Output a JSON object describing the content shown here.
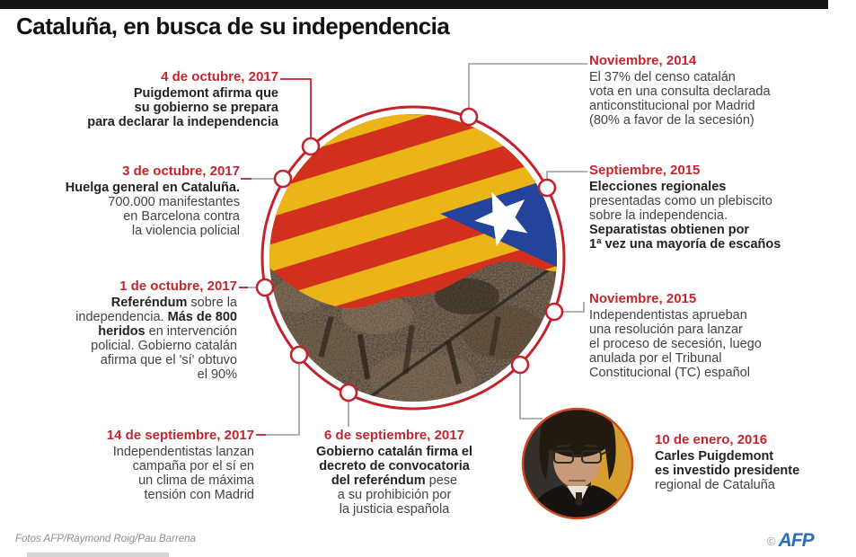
{
  "header": {
    "title": "Cataluña, en busca de su independencia"
  },
  "events": {
    "oct4_2017": {
      "date": "4 de octubre, 2017",
      "lines": [
        [
          {
            "t": "Puigdemont afirma que",
            "b": true
          }
        ],
        [
          {
            "t": "su gobierno se prepara",
            "b": true
          }
        ],
        [
          {
            "t": "para declarar la independencia",
            "b": true
          }
        ]
      ]
    },
    "oct3_2017": {
      "date": "3 de octubre, 2017",
      "lines": [
        [
          {
            "t": "Huelga general en Cataluña.",
            "b": true
          }
        ],
        [
          {
            "t": "700.000 manifestantes"
          }
        ],
        [
          {
            "t": "en Barcelona contra"
          }
        ],
        [
          {
            "t": "la violencia policial"
          }
        ]
      ]
    },
    "oct1_2017": {
      "date": "1 de octubre, 2017",
      "lines": [
        [
          {
            "t": "Referéndum",
            "b": true
          },
          {
            "t": " sobre la"
          }
        ],
        [
          {
            "t": "independencia. "
          },
          {
            "t": "Más de 800",
            "b": true
          }
        ],
        [
          {
            "t": "heridos",
            "b": true
          },
          {
            "t": " en intervención"
          }
        ],
        [
          {
            "t": "policial. Gobierno catalán"
          }
        ],
        [
          {
            "t": "afirma que el 'sí' obtuvo"
          }
        ],
        [
          {
            "t": "el 90%"
          }
        ]
      ]
    },
    "sep14_2017": {
      "date": "14 de septiembre, 2017",
      "lines": [
        [
          {
            "t": "Independentistas lanzan"
          }
        ],
        [
          {
            "t": "campaña por el sí en"
          }
        ],
        [
          {
            "t": "un clima de máxima"
          }
        ],
        [
          {
            "t": "tensión con Madrid"
          }
        ]
      ]
    },
    "sep6_2017": {
      "date": "6 de septiembre, 2017",
      "lines": [
        [
          {
            "t": "Gobierno catalán firma el",
            "b": true
          }
        ],
        [
          {
            "t": "decreto de convocatoria",
            "b": true
          }
        ],
        [
          {
            "t": "del referéndum",
            "b": true
          },
          {
            "t": " pese"
          }
        ],
        [
          {
            "t": "a su prohibición por"
          }
        ],
        [
          {
            "t": "la justicia española"
          }
        ]
      ]
    },
    "nov_2014": {
      "date": "Noviembre, 2014",
      "lines": [
        [
          {
            "t": "El 37% del censo catalán"
          }
        ],
        [
          {
            "t": "vota en una consulta declarada"
          }
        ],
        [
          {
            "t": "anticonstitucional por Madrid"
          }
        ],
        [
          {
            "t": "(80% a favor de la secesión)"
          }
        ]
      ]
    },
    "sep_2015": {
      "date": "Septiembre, 2015",
      "lines": [
        [
          {
            "t": "Elecciones regionales",
            "b": true
          }
        ],
        [
          {
            "t": "presentadas como un plebiscito"
          }
        ],
        [
          {
            "t": "sobre la independencia."
          }
        ],
        [
          {
            "t": "Separatistas obtienen por",
            "b": true
          }
        ],
        [
          {
            "t": "1ª vez una mayoría de escaños",
            "b": true
          }
        ]
      ]
    },
    "nov_2015": {
      "date": "Noviembre, 2015",
      "lines": [
        [
          {
            "t": "Independentistas aprueban"
          }
        ],
        [
          {
            "t": "una resolución para lanzar"
          }
        ],
        [
          {
            "t": "el proceso de secesión, luego"
          }
        ],
        [
          {
            "t": "anulada por el Tribunal"
          }
        ],
        [
          {
            "t": "Constitucional (TC) español"
          }
        ]
      ]
    },
    "ene10_2016": {
      "date": "10 de enero, 2016",
      "lines": [
        [
          {
            "t": "Carles Puigdemont",
            "b": true
          }
        ],
        [
          {
            "t": "es investido presidente",
            "b": true
          }
        ],
        [
          {
            "t": "regional de Cataluña"
          }
        ]
      ]
    }
  },
  "center_image": {
    "description": "Bandera estelada sobre multitud"
  },
  "portrait": {
    "description": "Carles Puigdemont"
  },
  "footer": {
    "credit": "Fotos AFP/Raymond Roig/Pau Barrena",
    "copyright": "©",
    "agency": "AFP"
  },
  "colors": {
    "accent_red": "#c5262e",
    "line_gray": "#9b9b9b",
    "flag_yellow": "#ecb517",
    "flag_red": "#d2301c",
    "flag_blue": "#24449c",
    "afp_blue": "#2f6eb5"
  }
}
